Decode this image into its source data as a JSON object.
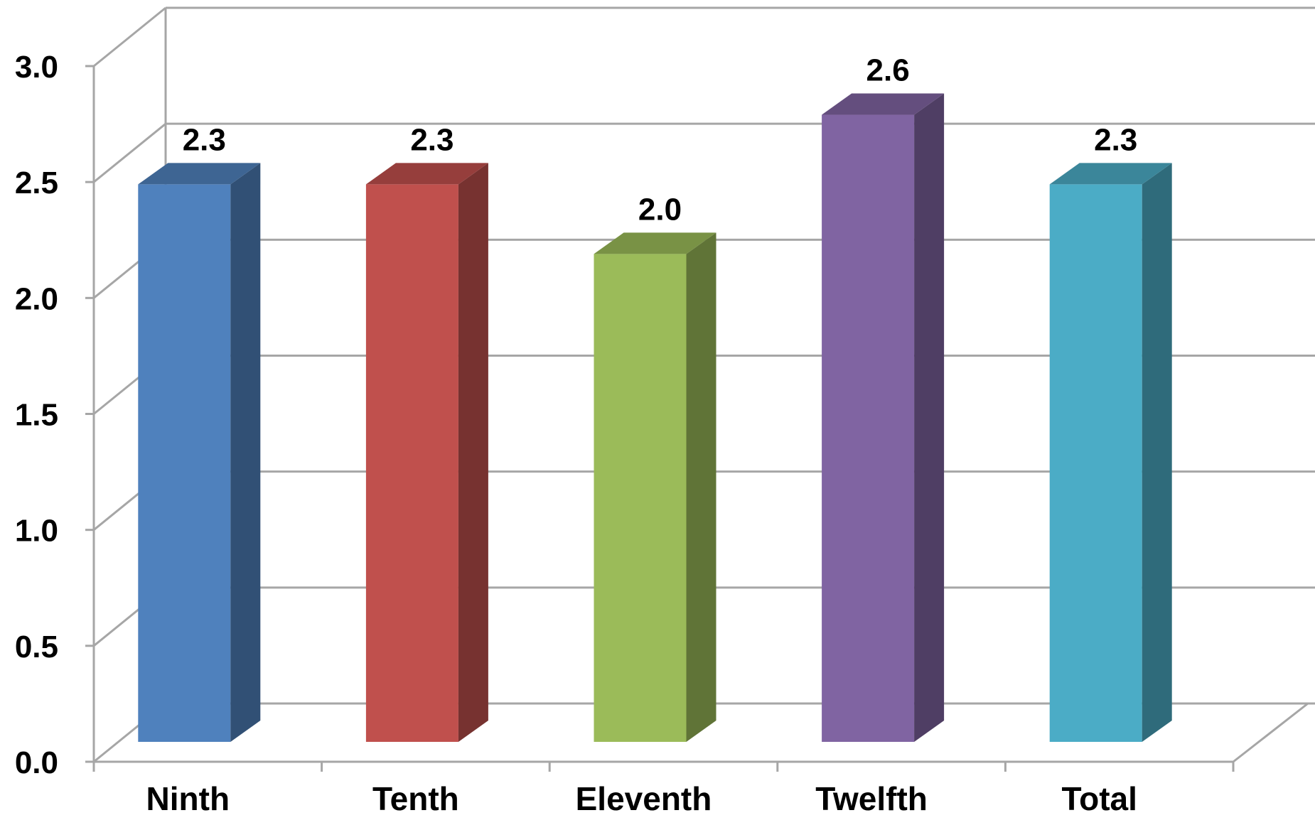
{
  "chart_data": {
    "type": "bar",
    "style": "3d-column",
    "categories": [
      "Ninth",
      "Tenth",
      "Eleventh",
      "Twelfth",
      "Total"
    ],
    "values": [
      2.3,
      2.3,
      2.0,
      2.6,
      2.3
    ],
    "data_labels": [
      "2.3",
      "2.3",
      "2.0",
      "2.6",
      "2.3"
    ],
    "colors": [
      "#4F81BD",
      "#C0504D",
      "#9BBB59",
      "#8064A2",
      "#4BACC6"
    ],
    "y_ticks": [
      "0.0",
      "0.5",
      "1.0",
      "1.5",
      "2.0",
      "2.5",
      "3.0"
    ],
    "ylim": [
      0,
      3
    ],
    "grid": true,
    "legend": "none",
    "title": "",
    "xlabel": "",
    "ylabel": ""
  }
}
